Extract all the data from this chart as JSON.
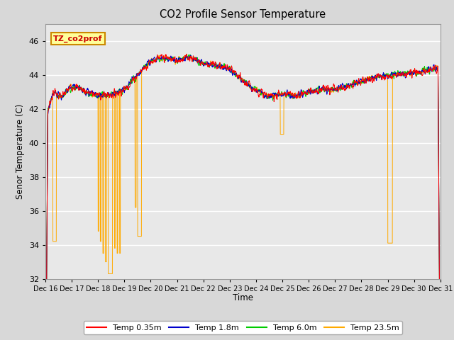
{
  "title": "CO2 Profile Sensor Temperature",
  "ylabel": "Senor Temperature (C)",
  "xlabel": "Time",
  "ylim": [
    32,
    47
  ],
  "yticks": [
    32,
    34,
    36,
    38,
    40,
    42,
    44,
    46
  ],
  "fig_bg_color": "#d8d8d8",
  "plot_bg_color": "#e8e8e8",
  "legend_labels": [
    "Temp 0.35m",
    "Temp 1.8m",
    "Temp 6.0m",
    "Temp 23.5m"
  ],
  "legend_colors": [
    "#ff0000",
    "#0000cc",
    "#00cc00",
    "#ffaa00"
  ],
  "annotation_text": "TZ_co2prof",
  "annotation_bg": "#ffff99",
  "annotation_border": "#cc8800",
  "x_tick_labels": [
    "Dec 16",
    "Dec 17",
    "Dec 18",
    "Dec 19",
    "Dec 20",
    "Dec 21",
    "Dec 22",
    "Dec 23",
    "Dec 24",
    "Dec 25",
    "Dec 26",
    "Dec 27",
    "Dec 28",
    "Dec 29",
    "Dec 30",
    "Dec 31"
  ],
  "n_points": 2000
}
